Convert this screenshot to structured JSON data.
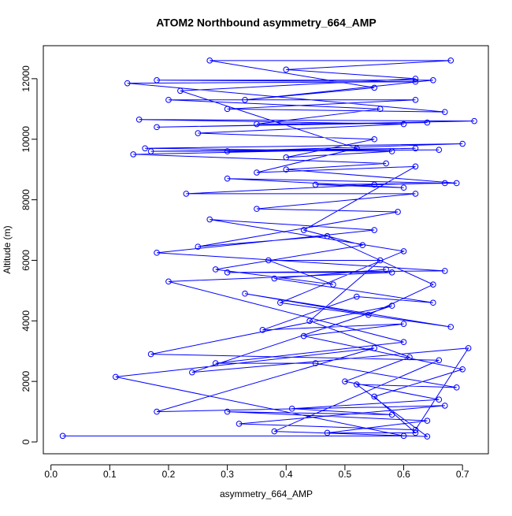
{
  "chart_data": {
    "type": "line",
    "title": "ATOM2 Northbound asymmetry_664_AMP",
    "x_label": "asymmetry_664_AMP",
    "y_label": "Altitude (m)",
    "xlim": [
      -0.013,
      0.744
    ],
    "ylim": [
      -390,
      13090
    ],
    "xticks": [
      {
        "value": 0,
        "label": "0.0"
      },
      0.1,
      0.2,
      0.3,
      0.4,
      0.5,
      0.6,
      0.7
    ],
    "yticks": [
      0,
      2000,
      4000,
      6000,
      8000,
      10000,
      12000
    ],
    "x": [
      0.02,
      0.6,
      0.11,
      0.55,
      0.18,
      0.67,
      0.32,
      0.62,
      0.71,
      0.24,
      0.58,
      0.17,
      0.66,
      0.38,
      0.64,
      0.52,
      0.69,
      0.45,
      0.28,
      0.6,
      0.2,
      0.58,
      0.3,
      0.67,
      0.18,
      0.55,
      0.27,
      0.6,
      0.39,
      0.68,
      0.33,
      0.54,
      0.65,
      0.47,
      0.25,
      0.59,
      0.35,
      0.62,
      0.23,
      0.55,
      0.67,
      0.3,
      0.6,
      0.45,
      0.69,
      0.4,
      0.57,
      0.14,
      0.62,
      0.17,
      0.66,
      0.3,
      0.7,
      0.16,
      0.58,
      0.4,
      0.55,
      0.25,
      0.6,
      0.15,
      0.72,
      0.18,
      0.64,
      0.35,
      0.56,
      0.2,
      0.62,
      0.3,
      0.67,
      0.13,
      0.62,
      0.18,
      0.65,
      0.33,
      0.55,
      0.27,
      0.68,
      0.4,
      0.62,
      0.22,
      0.52,
      0.35,
      0.62,
      0.43,
      0.53,
      0.28,
      0.48,
      0.37,
      0.56,
      0.44,
      0.61,
      0.5,
      0.66,
      0.41,
      0.58,
      0.3,
      0.64,
      0.47,
      0.62,
      0.55,
      0.7,
      0.43,
      0.6,
      0.36,
      0.52,
      0.65,
      0.38,
      0.57
    ],
    "series": [
      {
        "color": "#0000ff",
        "values": [
          200,
          200,
          2150,
          3100,
          1000,
          1200,
          600,
          400,
          3100,
          2300,
          4500,
          2900,
          2700,
          350,
          180,
          1900,
          1800,
          2600,
          2600,
          3300,
          5300,
          5600,
          5600,
          5650,
          6250,
          7000,
          7350,
          6300,
          4600,
          3800,
          4900,
          4200,
          5200,
          6800,
          6450,
          7600,
          7700,
          8200,
          8200,
          8500,
          8550,
          8700,
          8400,
          8500,
          8550,
          9000,
          9200,
          9500,
          9700,
          9600,
          9650,
          9600,
          9850,
          9700,
          9600,
          9400,
          10000,
          10200,
          10500,
          10650,
          10600,
          10400,
          10550,
          10500,
          11000,
          11300,
          11300,
          11000,
          10900,
          11850,
          11900,
          11950,
          11950,
          11300,
          11700,
          12600,
          12600,
          12300,
          12000,
          11600,
          9700,
          8900,
          9100,
          7000,
          6500,
          5700,
          5200,
          6000,
          6000,
          4000,
          2800,
          2000,
          1400,
          1100,
          900,
          1000,
          700,
          300,
          300,
          1500,
          2400,
          3500,
          3900,
          3700,
          4800,
          4600,
          5400,
          5700
        ]
      }
    ]
  }
}
